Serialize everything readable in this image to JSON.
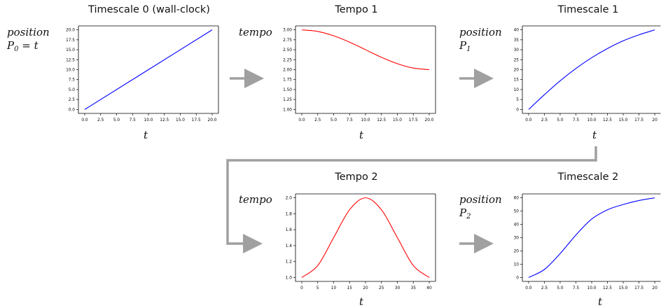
{
  "labels": {
    "position": "position",
    "tempo": "tempo",
    "p0": "P",
    "p0_sub": "0",
    "p0_rest": " = t",
    "p1": "P",
    "p1_sub": "1",
    "p2": "P",
    "p2_sub": "2",
    "t": "t"
  },
  "chart_data": [
    {
      "type": "line",
      "title": "Timescale 0 (wall-clock)",
      "color": "#0000ff",
      "x": [
        0,
        20
      ],
      "y": [
        0,
        20
      ],
      "xlim": [
        0,
        20
      ],
      "ylim": [
        0,
        20
      ],
      "xticks": [
        "0.0",
        "2.5",
        "5.0",
        "7.5",
        "10.0",
        "12.5",
        "15.0",
        "17.5",
        "20.0"
      ],
      "yticks": [
        "0.0",
        "2.5",
        "5.0",
        "7.5",
        "10.0",
        "12.5",
        "15.0",
        "17.5",
        "20.0"
      ],
      "xlabel": "t",
      "ylabel": "position P0 = t"
    },
    {
      "type": "line",
      "title": "Tempo 1",
      "color": "#ff0000",
      "x": [
        0,
        2.5,
        5,
        7.5,
        10,
        12.5,
        15,
        17.5,
        20
      ],
      "y": [
        3.0,
        2.96,
        2.85,
        2.69,
        2.5,
        2.31,
        2.15,
        2.04,
        2.0
      ],
      "xlim": [
        0,
        20
      ],
      "ylim": [
        1.0,
        3.0
      ],
      "xticks": [
        "0.0",
        "2.5",
        "5.0",
        "7.5",
        "10.0",
        "12.5",
        "15.0",
        "17.5",
        "20.0"
      ],
      "yticks": [
        "1.00",
        "1.25",
        "1.50",
        "1.75",
        "2.00",
        "2.25",
        "2.50",
        "2.75",
        "3.00"
      ],
      "xlabel": "t",
      "ylabel": "tempo"
    },
    {
      "type": "line",
      "title": "Timescale 1",
      "color": "#0000ff",
      "x": [
        0,
        2.5,
        5,
        7.5,
        10,
        12.5,
        15,
        17.5,
        20
      ],
      "y": [
        0,
        7.4,
        14.4,
        20.6,
        26.0,
        30.6,
        34.5,
        37.5,
        40.0
      ],
      "xlim": [
        0,
        20
      ],
      "ylim": [
        0,
        40
      ],
      "xticks": [
        "0.0",
        "2.5",
        "5.0",
        "7.5",
        "10.0",
        "12.5",
        "15.0",
        "17.5",
        "20"
      ],
      "yticks": [
        "0",
        "5",
        "10",
        "15",
        "20",
        "25",
        "30",
        "35",
        "40"
      ],
      "xlabel": "t",
      "ylabel": "position P1"
    },
    {
      "type": "line",
      "title": "Tempo 2",
      "color": "#ff0000",
      "x": [
        0,
        5,
        10,
        15,
        20,
        25,
        30,
        35,
        40
      ],
      "y": [
        1.0,
        1.15,
        1.5,
        1.85,
        2.0,
        1.85,
        1.5,
        1.15,
        1.0
      ],
      "xlim": [
        0,
        40
      ],
      "ylim": [
        1.0,
        2.0
      ],
      "xticks": [
        "0",
        "5",
        "10",
        "15",
        "20",
        "25",
        "30",
        "35",
        "40"
      ],
      "yticks": [
        "1.0",
        "1.2",
        "1.4",
        "1.6",
        "1.8",
        "2.0"
      ],
      "xlabel": "t",
      "ylabel": "tempo"
    },
    {
      "type": "line",
      "title": "Timescale 2",
      "color": "#0000ff",
      "x": [
        0,
        2.5,
        5,
        7.5,
        10,
        12.5,
        15,
        17.5,
        20
      ],
      "y": [
        0,
        6,
        18,
        32,
        44,
        51,
        55,
        58,
        60
      ],
      "xlim": [
        0,
        20
      ],
      "ylim": [
        0,
        60
      ],
      "xticks": [
        "0.0",
        "2.5",
        "5.0",
        "7.5",
        "10.0",
        "12.5",
        "15.0",
        "17.5",
        "20"
      ],
      "yticks": [
        "0",
        "10",
        "20",
        "30",
        "40",
        "50",
        "60"
      ],
      "xlabel": "t",
      "ylabel": "position P2"
    }
  ]
}
